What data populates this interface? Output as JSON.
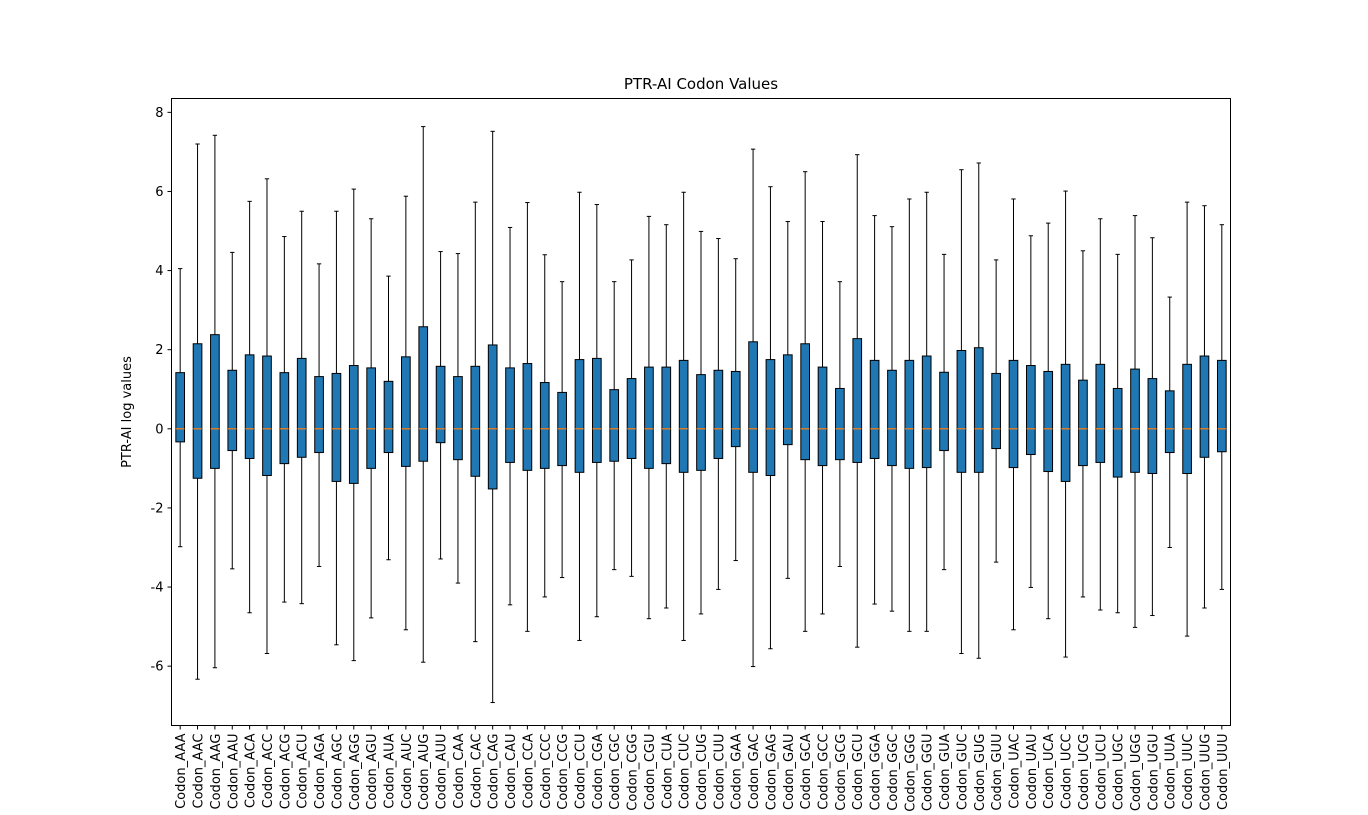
{
  "chart_data": {
    "type": "box",
    "title": "PTR-AI Codon Values",
    "xlabel": "",
    "ylabel": "PTR-AI log values",
    "ylim": [
      -7.5,
      8.35
    ],
    "yticks": [
      -6,
      -4,
      -2,
      0,
      2,
      4,
      6,
      8
    ],
    "grid": false,
    "colors": {
      "box_fill": "#1f77b4",
      "median": "#ff7f0e",
      "whisker": "#000000"
    },
    "categories": [
      "Codon_AAA",
      "Codon_AAC",
      "Codon_AAG",
      "Codon_AAU",
      "Codon_ACA",
      "Codon_ACC",
      "Codon_ACG",
      "Codon_ACU",
      "Codon_AGA",
      "Codon_AGC",
      "Codon_AGG",
      "Codon_AGU",
      "Codon_AUA",
      "Codon_AUC",
      "Codon_AUG",
      "Codon_AUU",
      "Codon_CAA",
      "Codon_CAC",
      "Codon_CAG",
      "Codon_CAU",
      "Codon_CCA",
      "Codon_CCC",
      "Codon_CCG",
      "Codon_CCU",
      "Codon_CGA",
      "Codon_CGC",
      "Codon_CGG",
      "Codon_CGU",
      "Codon_CUA",
      "Codon_CUC",
      "Codon_CUG",
      "Codon_CUU",
      "Codon_GAA",
      "Codon_GAC",
      "Codon_GAG",
      "Codon_GAU",
      "Codon_GCA",
      "Codon_GCC",
      "Codon_GCG",
      "Codon_GCU",
      "Codon_GGA",
      "Codon_GGC",
      "Codon_GGG",
      "Codon_GGU",
      "Codon_GUA",
      "Codon_GUC",
      "Codon_GUG",
      "Codon_GUU",
      "Codon_UAC",
      "Codon_UAU",
      "Codon_UCA",
      "Codon_UCC",
      "Codon_UCG",
      "Codon_UCU",
      "Codon_UGC",
      "Codon_UGG",
      "Codon_UGU",
      "Codon_UUA",
      "Codon_UUC",
      "Codon_UUG",
      "Codon_UUU"
    ],
    "boxes": [
      {
        "wlo": -2.98,
        "q1": -0.33,
        "med": 0.0,
        "q3": 1.42,
        "whi": 4.05
      },
      {
        "wlo": -6.33,
        "q1": -1.25,
        "med": 0.0,
        "q3": 2.15,
        "whi": 7.2
      },
      {
        "wlo": -6.04,
        "q1": -1.0,
        "med": 0.0,
        "q3": 2.38,
        "whi": 7.42
      },
      {
        "wlo": -3.54,
        "q1": -0.55,
        "med": 0.0,
        "q3": 1.48,
        "whi": 4.46
      },
      {
        "wlo": -4.65,
        "q1": -0.75,
        "med": 0.0,
        "q3": 1.87,
        "whi": 5.75
      },
      {
        "wlo": -5.68,
        "q1": -1.18,
        "med": 0.0,
        "q3": 1.84,
        "whi": 6.32
      },
      {
        "wlo": -4.38,
        "q1": -0.88,
        "med": 0.0,
        "q3": 1.42,
        "whi": 4.86
      },
      {
        "wlo": -4.42,
        "q1": -0.72,
        "med": 0.0,
        "q3": 1.78,
        "whi": 5.5
      },
      {
        "wlo": -3.48,
        "q1": -0.6,
        "med": 0.0,
        "q3": 1.32,
        "whi": 4.17
      },
      {
        "wlo": -5.46,
        "q1": -1.33,
        "med": 0.0,
        "q3": 1.4,
        "whi": 5.5
      },
      {
        "wlo": -5.86,
        "q1": -1.38,
        "med": 0.0,
        "q3": 1.6,
        "whi": 6.06
      },
      {
        "wlo": -4.78,
        "q1": -1.0,
        "med": 0.0,
        "q3": 1.54,
        "whi": 5.31
      },
      {
        "wlo": -3.31,
        "q1": -0.6,
        "med": 0.0,
        "q3": 1.2,
        "whi": 3.86
      },
      {
        "wlo": -5.08,
        "q1": -0.95,
        "med": 0.0,
        "q3": 1.82,
        "whi": 5.88
      },
      {
        "wlo": -5.9,
        "q1": -0.82,
        "med": 0.0,
        "q3": 2.58,
        "whi": 7.64
      },
      {
        "wlo": -3.29,
        "q1": -0.35,
        "med": 0.0,
        "q3": 1.58,
        "whi": 4.48
      },
      {
        "wlo": -3.9,
        "q1": -0.78,
        "med": 0.0,
        "q3": 1.32,
        "whi": 4.43
      },
      {
        "wlo": -5.38,
        "q1": -1.2,
        "med": 0.0,
        "q3": 1.58,
        "whi": 5.73
      },
      {
        "wlo": -6.92,
        "q1": -1.52,
        "med": 0.0,
        "q3": 2.12,
        "whi": 7.52
      },
      {
        "wlo": -4.45,
        "q1": -0.85,
        "med": 0.0,
        "q3": 1.54,
        "whi": 5.09
      },
      {
        "wlo": -5.12,
        "q1": -1.05,
        "med": 0.0,
        "q3": 1.65,
        "whi": 5.72
      },
      {
        "wlo": -4.25,
        "q1": -1.0,
        "med": 0.0,
        "q3": 1.17,
        "whi": 4.4
      },
      {
        "wlo": -3.76,
        "q1": -0.93,
        "med": 0.0,
        "q3": 0.92,
        "whi": 3.72
      },
      {
        "wlo": -5.35,
        "q1": -1.1,
        "med": 0.0,
        "q3": 1.75,
        "whi": 5.98
      },
      {
        "wlo": -4.75,
        "q1": -0.85,
        "med": 0.0,
        "q3": 1.78,
        "whi": 5.67
      },
      {
        "wlo": -3.56,
        "q1": -0.82,
        "med": 0.0,
        "q3": 0.99,
        "whi": 3.72
      },
      {
        "wlo": -3.73,
        "q1": -0.75,
        "med": 0.0,
        "q3": 1.27,
        "whi": 4.27
      },
      {
        "wlo": -4.8,
        "q1": -1.0,
        "med": 0.0,
        "q3": 1.56,
        "whi": 5.37
      },
      {
        "wlo": -4.53,
        "q1": -0.88,
        "med": 0.0,
        "q3": 1.56,
        "whi": 5.16
      },
      {
        "wlo": -5.35,
        "q1": -1.1,
        "med": 0.0,
        "q3": 1.73,
        "whi": 5.98
      },
      {
        "wlo": -4.68,
        "q1": -1.05,
        "med": 0.0,
        "q3": 1.37,
        "whi": 4.99
      },
      {
        "wlo": -4.06,
        "q1": -0.75,
        "med": 0.0,
        "q3": 1.48,
        "whi": 4.81
      },
      {
        "wlo": -3.33,
        "q1": -0.45,
        "med": 0.0,
        "q3": 1.45,
        "whi": 4.3
      },
      {
        "wlo": -6.01,
        "q1": -1.1,
        "med": 0.0,
        "q3": 2.2,
        "whi": 7.07
      },
      {
        "wlo": -5.56,
        "q1": -1.18,
        "med": 0.0,
        "q3": 1.75,
        "whi": 6.12
      },
      {
        "wlo": -3.78,
        "q1": -0.4,
        "med": 0.0,
        "q3": 1.87,
        "whi": 5.24
      },
      {
        "wlo": -5.12,
        "q1": -0.78,
        "med": 0.0,
        "q3": 2.15,
        "whi": 6.5
      },
      {
        "wlo": -4.68,
        "q1": -0.93,
        "med": 0.0,
        "q3": 1.56,
        "whi": 5.24
      },
      {
        "wlo": -3.48,
        "q1": -0.78,
        "med": 0.0,
        "q3": 1.02,
        "whi": 3.72
      },
      {
        "wlo": -5.52,
        "q1": -0.85,
        "med": 0.0,
        "q3": 2.28,
        "whi": 6.93
      },
      {
        "wlo": -4.43,
        "q1": -0.75,
        "med": 0.0,
        "q3": 1.73,
        "whi": 5.39
      },
      {
        "wlo": -4.61,
        "q1": -0.93,
        "med": 0.0,
        "q3": 1.48,
        "whi": 5.11
      },
      {
        "wlo": -5.12,
        "q1": -1.0,
        "med": 0.0,
        "q3": 1.73,
        "whi": 5.81
      },
      {
        "wlo": -5.12,
        "q1": -0.98,
        "med": 0.0,
        "q3": 1.84,
        "whi": 5.98
      },
      {
        "wlo": -3.56,
        "q1": -0.55,
        "med": 0.0,
        "q3": 1.43,
        "whi": 4.41
      },
      {
        "wlo": -5.68,
        "q1": -1.1,
        "med": 0.0,
        "q3": 1.98,
        "whi": 6.55
      },
      {
        "wlo": -5.8,
        "q1": -1.1,
        "med": 0.0,
        "q3": 2.05,
        "whi": 6.72
      },
      {
        "wlo": -3.37,
        "q1": -0.5,
        "med": 0.0,
        "q3": 1.4,
        "whi": 4.27
      },
      {
        "wlo": -5.08,
        "q1": -0.98,
        "med": 0.0,
        "q3": 1.73,
        "whi": 5.81
      },
      {
        "wlo": -4.01,
        "q1": -0.65,
        "med": 0.0,
        "q3": 1.6,
        "whi": 4.88
      },
      {
        "wlo": -4.8,
        "q1": -1.08,
        "med": 0.0,
        "q3": 1.45,
        "whi": 5.2
      },
      {
        "wlo": -5.77,
        "q1": -1.33,
        "med": 0.0,
        "q3": 1.63,
        "whi": 6.01
      },
      {
        "wlo": -4.25,
        "q1": -0.93,
        "med": 0.0,
        "q3": 1.23,
        "whi": 4.5
      },
      {
        "wlo": -4.58,
        "q1": -0.85,
        "med": 0.0,
        "q3": 1.63,
        "whi": 5.31
      },
      {
        "wlo": -4.65,
        "q1": -1.22,
        "med": 0.0,
        "q3": 1.02,
        "whi": 4.41
      },
      {
        "wlo": -5.02,
        "q1": -1.1,
        "med": 0.0,
        "q3": 1.51,
        "whi": 5.39
      },
      {
        "wlo": -4.72,
        "q1": -1.13,
        "med": 0.0,
        "q3": 1.27,
        "whi": 4.83
      },
      {
        "wlo": -3.0,
        "q1": -0.6,
        "med": 0.0,
        "q3": 0.96,
        "whi": 3.33
      },
      {
        "wlo": -5.24,
        "q1": -1.13,
        "med": 0.0,
        "q3": 1.63,
        "whi": 5.73
      },
      {
        "wlo": -4.53,
        "q1": -0.72,
        "med": 0.0,
        "q3": 1.84,
        "whi": 5.64
      },
      {
        "wlo": -4.06,
        "q1": -0.58,
        "med": 0.0,
        "q3": 1.73,
        "whi": 5.16
      }
    ]
  }
}
